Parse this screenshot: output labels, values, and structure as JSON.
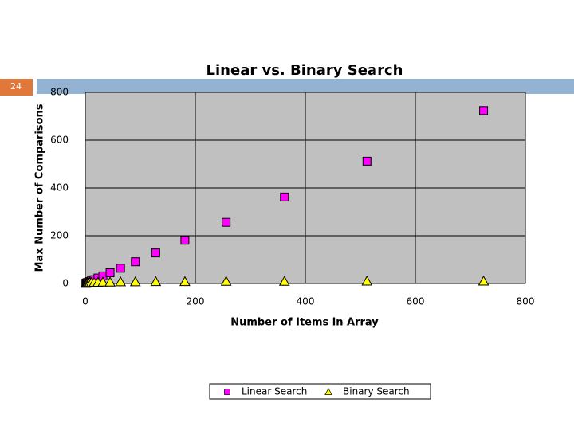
{
  "slide_number": "24",
  "chart_data": {
    "type": "scatter",
    "title": "Linear vs. Binary Search",
    "x_label": "Number of Items in Array",
    "y_label": "Max Number of Comparisons",
    "x": [
      1,
      2,
      3,
      4,
      6,
      8,
      11,
      16,
      23,
      32,
      45,
      64,
      91,
      128,
      181,
      256,
      362,
      512,
      724
    ],
    "series": [
      {
        "name": "Linear Search",
        "color": "#ff00ff",
        "marker": "square",
        "values": [
          1,
          2,
          3,
          4,
          6,
          8,
          11,
          16,
          23,
          32,
          45,
          64,
          91,
          128,
          181,
          256,
          362,
          512,
          724
        ]
      },
      {
        "name": "Binary Search",
        "color": "#ffff00",
        "marker": "triangle",
        "values": [
          1,
          2,
          2,
          3,
          3,
          4,
          4,
          5,
          5,
          6,
          6,
          7,
          7,
          8,
          8,
          9,
          9,
          10,
          10
        ]
      }
    ],
    "xlim": [
      0,
      800
    ],
    "ylim": [
      0,
      800
    ],
    "xticks": [
      0,
      200,
      400,
      600,
      800
    ],
    "yticks": [
      0,
      200,
      400,
      600,
      800
    ],
    "grid": true
  }
}
